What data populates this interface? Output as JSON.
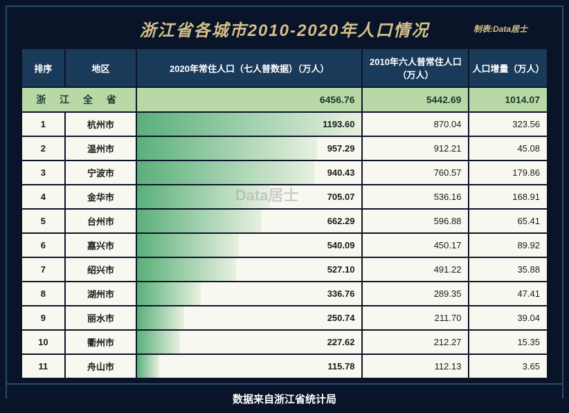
{
  "title": "浙江省各城市2010-2020年人口情况",
  "credit": "制表:Data居士",
  "watermark": "Data居士",
  "footer": "数据来自浙江省统计局",
  "columns": {
    "rank": "排序",
    "region": "地区",
    "pop2020": "2020年常住人口（七人普数据）（万人）",
    "pop2010": "2010年六人普常住人口（万人）",
    "increase": "人口增量（万人）"
  },
  "total": {
    "label": "浙 江 全 省",
    "pop2020": "6456.76",
    "pop2010": "5442.69",
    "increase": "1014.07"
  },
  "bar_max": 1193.6,
  "bar_colors": {
    "start": "#5ab07a",
    "end": "#e8f0e0"
  },
  "header_bg": "#1a3a5a",
  "total_bg": "#b8d8a8",
  "row_bg": "#f8f8f0",
  "page_bg": "#0a1428",
  "title_color": "#d4c08a",
  "rows": [
    {
      "rank": "1",
      "region": "杭州市",
      "pop2020": "1193.60",
      "pop2010": "870.04",
      "increase": "323.56"
    },
    {
      "rank": "2",
      "region": "温州市",
      "pop2020": "957.29",
      "pop2010": "912.21",
      "increase": "45.08"
    },
    {
      "rank": "3",
      "region": "宁波市",
      "pop2020": "940.43",
      "pop2010": "760.57",
      "increase": "179.86"
    },
    {
      "rank": "4",
      "region": "金华市",
      "pop2020": "705.07",
      "pop2010": "536.16",
      "increase": "168.91"
    },
    {
      "rank": "5",
      "region": "台州市",
      "pop2020": "662.29",
      "pop2010": "596.88",
      "increase": "65.41"
    },
    {
      "rank": "6",
      "region": "嘉兴市",
      "pop2020": "540.09",
      "pop2010": "450.17",
      "increase": "89.92"
    },
    {
      "rank": "7",
      "region": "绍兴市",
      "pop2020": "527.10",
      "pop2010": "491.22",
      "increase": "35.88"
    },
    {
      "rank": "8",
      "region": "湖州市",
      "pop2020": "336.76",
      "pop2010": "289.35",
      "increase": "47.41"
    },
    {
      "rank": "9",
      "region": "丽水市",
      "pop2020": "250.74",
      "pop2010": "211.70",
      "increase": "39.04"
    },
    {
      "rank": "10",
      "region": "衢州市",
      "pop2020": "227.62",
      "pop2010": "212.27",
      "increase": "15.35"
    },
    {
      "rank": "11",
      "region": "舟山市",
      "pop2020": "115.78",
      "pop2010": "112.13",
      "increase": "3.65"
    }
  ]
}
